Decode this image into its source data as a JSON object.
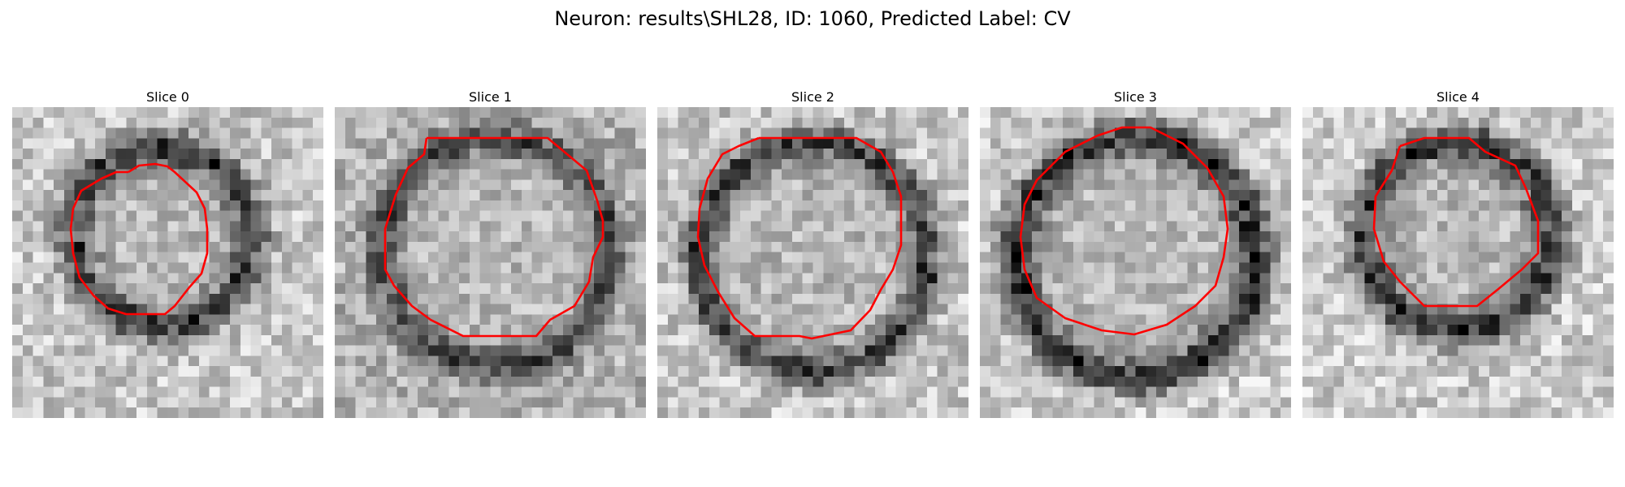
{
  "figure": {
    "title": "Neuron: results\\SHL28, ID: 1060, Predicted Label: CV"
  },
  "colors": {
    "contour": "#ff0000",
    "background": "#ffffff"
  },
  "panels": [
    {
      "title": "Slice 0"
    },
    {
      "title": "Slice 1"
    },
    {
      "title": "Slice 2"
    },
    {
      "title": "Slice 3"
    },
    {
      "title": "Slice 4"
    }
  ]
}
